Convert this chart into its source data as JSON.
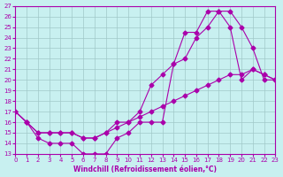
{
  "xlabel": "Windchill (Refroidissement éolien,°C)",
  "bg_color": "#c8f0f0",
  "line_color": "#aa00aa",
  "grid_color": "#a0c8c8",
  "xlim": [
    0,
    23
  ],
  "ylim": [
    13,
    27
  ],
  "xticks": [
    0,
    1,
    2,
    3,
    4,
    5,
    6,
    7,
    8,
    9,
    10,
    11,
    12,
    13,
    14,
    15,
    16,
    17,
    18,
    19,
    20,
    21,
    22,
    23
  ],
  "yticks": [
    13,
    14,
    15,
    16,
    17,
    18,
    19,
    20,
    21,
    22,
    23,
    24,
    25,
    26,
    27
  ],
  "line1_x": [
    0,
    1,
    2,
    3,
    4,
    5,
    6,
    7,
    8,
    9,
    10,
    11,
    12,
    13,
    14,
    15,
    16,
    17,
    18,
    19,
    20,
    21,
    22,
    23
  ],
  "line1_y": [
    17,
    16,
    14.5,
    14,
    14,
    14,
    13,
    13,
    13,
    14.5,
    15,
    16,
    16,
    16,
    21.5,
    24.5,
    24.5,
    26.5,
    26.5,
    25,
    20,
    21,
    20.5,
    20
  ],
  "line2_x": [
    0,
    1,
    2,
    3,
    4,
    5,
    6,
    7,
    8,
    9,
    10,
    11,
    12,
    13,
    14,
    15,
    16,
    17,
    18,
    19,
    20,
    21,
    22,
    23
  ],
  "line2_y": [
    17,
    16,
    15,
    15,
    15,
    15,
    14.5,
    14.5,
    15,
    16,
    16,
    17,
    19.5,
    20.5,
    21.5,
    22,
    24,
    25,
    26.5,
    26.5,
    25,
    23,
    20,
    20
  ],
  "line3_x": [
    0,
    1,
    2,
    3,
    4,
    5,
    6,
    7,
    8,
    9,
    10,
    11,
    12,
    13,
    14,
    15,
    16,
    17,
    18,
    19,
    20,
    21,
    22,
    23
  ],
  "line3_y": [
    17,
    16,
    15,
    15,
    15,
    15,
    14.5,
    14.5,
    15,
    15.5,
    16,
    16.5,
    17,
    17.5,
    18,
    18.5,
    19,
    19.5,
    20,
    20.5,
    20.5,
    21,
    20.5,
    20
  ]
}
